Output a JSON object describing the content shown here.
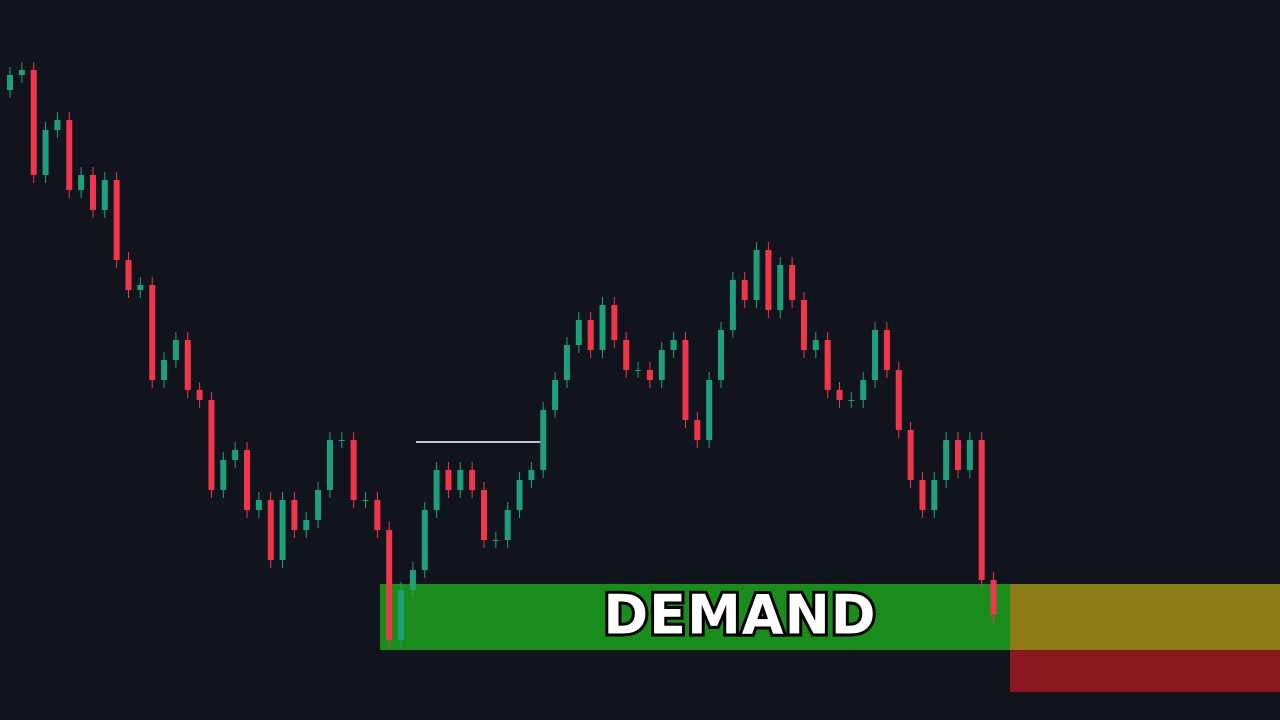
{
  "chart_data": {
    "type": "candlestick",
    "up_color": "#1fa07a",
    "down_color": "#f0364a",
    "ylim": [
      0,
      720
    ],
    "open": [
      630,
      645,
      650,
      545,
      590,
      600,
      530,
      545,
      510,
      540,
      460,
      430,
      435,
      340,
      360,
      380,
      330,
      320,
      230,
      260,
      270,
      210,
      220,
      160,
      220,
      190,
      200,
      230,
      280,
      280,
      220,
      220,
      190,
      80,
      130,
      150,
      210,
      250,
      230,
      250,
      230,
      180,
      180,
      210,
      240,
      250,
      310,
      340,
      375,
      400,
      370,
      415,
      380,
      350,
      350,
      340,
      370,
      380,
      300,
      280,
      340,
      390,
      440,
      420,
      470,
      410,
      455,
      420,
      370,
      380,
      330,
      320,
      320,
      340,
      390,
      350,
      290,
      240,
      210,
      240,
      280,
      250,
      280,
      140
    ],
    "high": [
      653,
      658,
      658,
      598,
      608,
      608,
      553,
      553,
      548,
      548,
      468,
      443,
      443,
      368,
      388,
      388,
      338,
      328,
      268,
      278,
      278,
      228,
      228,
      228,
      228,
      208,
      238,
      288,
      288,
      288,
      228,
      228,
      198,
      138,
      158,
      218,
      258,
      258,
      258,
      258,
      238,
      188,
      218,
      248,
      258,
      318,
      348,
      383,
      408,
      408,
      423,
      423,
      388,
      358,
      358,
      378,
      388,
      388,
      308,
      348,
      398,
      448,
      448,
      478,
      478,
      463,
      463,
      428,
      388,
      388,
      338,
      328,
      348,
      398,
      398,
      358,
      298,
      248,
      248,
      288,
      288,
      288,
      288,
      148
    ],
    "low": [
      622,
      637,
      537,
      537,
      582,
      522,
      522,
      502,
      502,
      452,
      422,
      422,
      332,
      332,
      352,
      322,
      312,
      222,
      222,
      252,
      202,
      202,
      152,
      152,
      182,
      182,
      192,
      222,
      272,
      212,
      212,
      182,
      72,
      72,
      122,
      142,
      202,
      222,
      222,
      222,
      172,
      172,
      172,
      202,
      232,
      242,
      302,
      332,
      367,
      362,
      362,
      372,
      342,
      342,
      332,
      332,
      362,
      292,
      272,
      272,
      332,
      382,
      412,
      412,
      402,
      402,
      412,
      362,
      362,
      322,
      312,
      312,
      312,
      332,
      342,
      282,
      232,
      202,
      202,
      232,
      242,
      242,
      132,
      97
    ],
    "close": [
      645,
      650,
      545,
      590,
      600,
      530,
      545,
      510,
      540,
      460,
      430,
      435,
      340,
      360,
      380,
      330,
      320,
      230,
      260,
      270,
      210,
      220,
      160,
      220,
      190,
      200,
      230,
      280,
      280,
      220,
      220,
      190,
      80,
      130,
      150,
      210,
      250,
      230,
      250,
      230,
      180,
      180,
      210,
      240,
      250,
      310,
      340,
      375,
      400,
      370,
      415,
      380,
      350,
      350,
      340,
      370,
      380,
      300,
      280,
      340,
      390,
      440,
      420,
      470,
      410,
      455,
      420,
      370,
      380,
      330,
      320,
      320,
      340,
      390,
      350,
      290,
      240,
      210,
      240,
      280,
      250,
      280,
      140,
      105
    ],
    "level": {
      "value": 278,
      "color": "#ffffff"
    },
    "zones": [
      {
        "label": "DEMAND",
        "range": [
          70,
          136
        ],
        "color": "#198c1b"
      },
      {
        "range": [
          70,
          136
        ],
        "color": "#8c7d17"
      },
      {
        "range": [
          28,
          70
        ],
        "color": "#8b1820"
      }
    ]
  }
}
